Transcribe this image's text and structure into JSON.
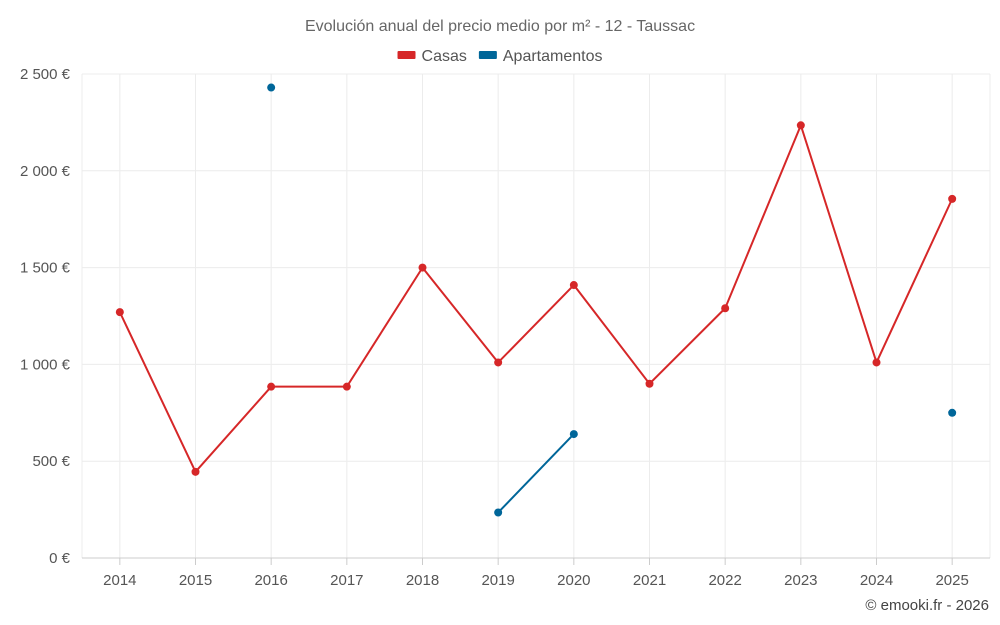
{
  "chart_data": {
    "type": "line",
    "title": "Evolución anual del precio medio por m² - 12 - Taussac",
    "categories": [
      "2014",
      "2015",
      "2016",
      "2017",
      "2018",
      "2019",
      "2020",
      "2021",
      "2022",
      "2023",
      "2024",
      "2025"
    ],
    "y_tick_labels": [
      "0 €",
      "500 €",
      "1 000 €",
      "1 500 €",
      "2 000 €",
      "2 500 €"
    ],
    "y_ticks": [
      0,
      500,
      1000,
      1500,
      2000,
      2500
    ],
    "ylim": [
      0,
      2500
    ],
    "grid": true,
    "legend_position": "top-center",
    "series": [
      {
        "name": "Casas",
        "color": "#d62728",
        "values": [
          1270,
          445,
          885,
          885,
          1500,
          1010,
          1410,
          900,
          1290,
          2235,
          1010,
          1855
        ]
      },
      {
        "name": "Apartamentos",
        "color": "#006699",
        "values": [
          null,
          null,
          2430,
          null,
          null,
          235,
          640,
          null,
          null,
          null,
          null,
          750
        ]
      }
    ]
  },
  "credit": "© emooki.fr - 2026"
}
